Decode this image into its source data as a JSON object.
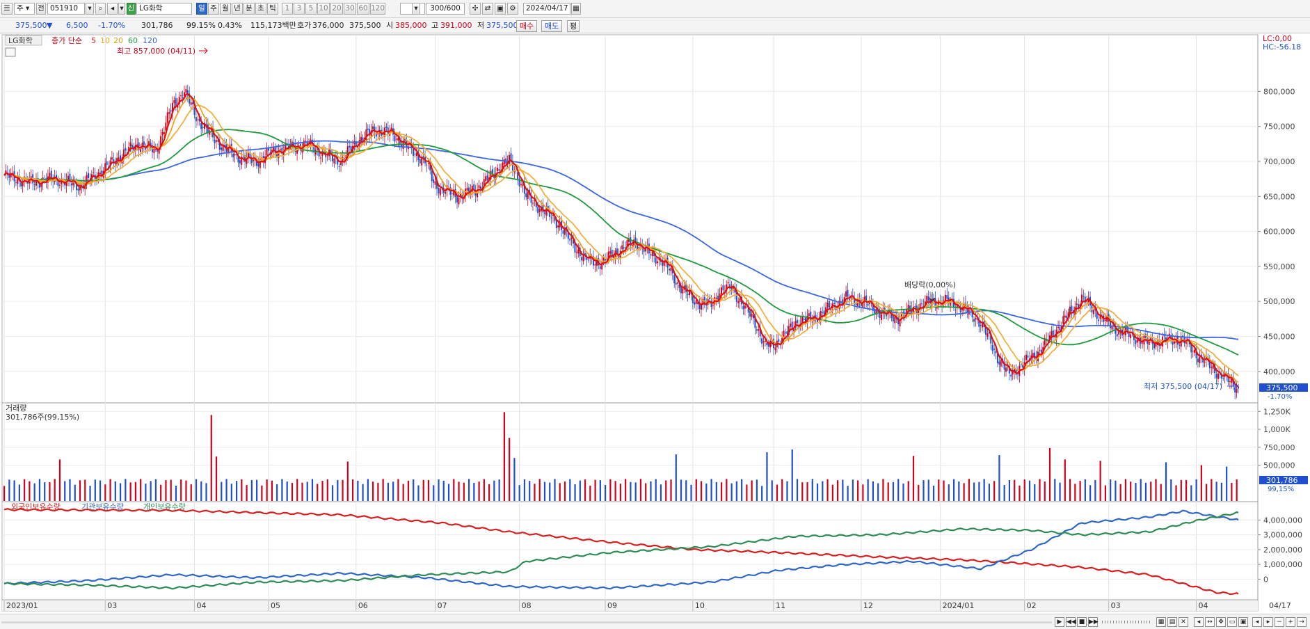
{
  "toolbar": {
    "market_label": "주",
    "code_prefix": "전",
    "stock_code": "051910",
    "stock_badge": "신",
    "stock_name": "LG화학",
    "periods": [
      "일",
      "주",
      "월",
      "년",
      "분",
      "초",
      "틱"
    ],
    "active_period": "일",
    "intervals": [
      "1",
      "3",
      "5",
      "10",
      "20",
      "30",
      "60",
      "120"
    ],
    "count": "300/600",
    "date": "2024/04/17"
  },
  "quote": {
    "price": "375,500",
    "direction": "▼",
    "change": "6,500",
    "change_pct": "-1.70%",
    "volume": "301,786",
    "volume_ratio": "99.15%",
    "turnover_pct": "0.43%",
    "trade_value": "115,173백만",
    "bid_label": "호가",
    "bid": "376,000",
    "ask": "375,500",
    "open_label": "시",
    "open": "385,000",
    "high_label": "고",
    "high": "391,000",
    "low_label": "저",
    "low": "375,500",
    "buy_label": "매수",
    "sell_label": "매도",
    "avg_label": "평"
  },
  "chart_data": [
    {
      "type": "candlestick",
      "title": "LG화학",
      "legend": {
        "ma_label": "종가 단순",
        "periods": [
          "5",
          "10",
          "20",
          "60",
          "120"
        ]
      },
      "colors": {
        "up": "#d0021b",
        "down": "#1f4fcf",
        "ma5": "#e01010",
        "ma10": "#f0a020",
        "ma20": "#f0b040",
        "ma60": "#1e9a3c",
        "ma120": "#3a66e0"
      },
      "y_ticks": [
        "800,000",
        "750,000",
        "700,000",
        "650,000",
        "600,000",
        "550,000",
        "500,000",
        "450,000",
        "400,000"
      ],
      "y_tick_values": [
        800000,
        750000,
        700000,
        650000,
        600000,
        550000,
        500000,
        450000,
        400000
      ],
      "y_range": [
        358000,
        870000
      ],
      "top_right_labels": [
        "LC:0,00",
        "HC:-56.18"
      ],
      "annotations": {
        "high": "최고 857,000 (04/11)",
        "low": "최저 375,500 (04/17)",
        "dividend": "배당락(0,00%)"
      },
      "last_price": "375,500",
      "last_change": "-1.70%",
      "close_path": [
        [
          0,
          680000
        ],
        [
          15,
          670000
        ],
        [
          30,
          675000
        ],
        [
          45,
          665000
        ],
        [
          60,
          690000
        ],
        [
          70,
          710000
        ],
        [
          80,
          725000
        ],
        [
          90,
          715000
        ],
        [
          100,
          780000
        ],
        [
          107,
          800000
        ],
        [
          115,
          760000
        ],
        [
          122,
          740000
        ],
        [
          130,
          720000
        ],
        [
          140,
          705000
        ],
        [
          150,
          700000
        ],
        [
          160,
          715000
        ],
        [
          170,
          720000
        ],
        [
          180,
          725000
        ],
        [
          190,
          710000
        ],
        [
          200,
          700000
        ],
        [
          210,
          730000
        ],
        [
          220,
          745000
        ],
        [
          230,
          740000
        ],
        [
          240,
          720000
        ],
        [
          250,
          700000
        ],
        [
          255,
          670000
        ],
        [
          260,
          660000
        ],
        [
          270,
          650000
        ],
        [
          280,
          660000
        ],
        [
          290,
          680000
        ],
        [
          295,
          695000
        ],
        [
          300,
          700000
        ],
        [
          305,
          680000
        ],
        [
          310,
          650000
        ],
        [
          320,
          630000
        ],
        [
          330,
          610000
        ],
        [
          335,
          590000
        ],
        [
          345,
          560000
        ],
        [
          355,
          555000
        ],
        [
          360,
          565000
        ],
        [
          370,
          580000
        ],
        [
          375,
          585000
        ],
        [
          385,
          565000
        ],
        [
          390,
          560000
        ],
        [
          395,
          545000
        ],
        [
          400,
          525000
        ],
        [
          410,
          500000
        ],
        [
          420,
          495000
        ],
        [
          425,
          515000
        ],
        [
          432,
          520000
        ],
        [
          440,
          490000
        ],
        [
          446,
          470000
        ],
        [
          452,
          435000
        ],
        [
          458,
          440000
        ],
        [
          465,
          455000
        ],
        [
          470,
          470000
        ],
        [
          480,
          475000
        ],
        [
          490,
          490000
        ],
        [
          500,
          505000
        ],
        [
          510,
          500000
        ],
        [
          520,
          485000
        ],
        [
          530,
          475000
        ],
        [
          540,
          490000
        ],
        [
          550,
          500000
        ],
        [
          560,
          500000
        ],
        [
          570,
          490000
        ],
        [
          580,
          470000
        ],
        [
          590,
          420000
        ],
        [
          597,
          395000
        ],
        [
          605,
          410000
        ],
        [
          615,
          430000
        ],
        [
          625,
          460000
        ],
        [
          635,
          490000
        ],
        [
          640,
          505000
        ],
        [
          650,
          480000
        ],
        [
          660,
          460000
        ],
        [
          670,
          450000
        ],
        [
          680,
          440000
        ],
        [
          690,
          445000
        ],
        [
          700,
          445000
        ],
        [
          710,
          420000
        ],
        [
          720,
          400000
        ],
        [
          728,
          385000
        ],
        [
          733,
          375500
        ]
      ]
    },
    {
      "type": "bar",
      "title": "거래량",
      "legend_value": "301,786주(99,15%)",
      "y_ticks": [
        "1,250K",
        "1,000K",
        "750,000",
        "500,000"
      ],
      "y_tick_values": [
        1250000,
        1000000,
        750000,
        500000
      ],
      "y_range": [
        0,
        1350000
      ],
      "last_volume": "301,786",
      "last_ratio": "99,15%",
      "typical_volume": 280000,
      "spikes": [
        {
          "day": 32,
          "value": 580000
        },
        {
          "day": 123,
          "value": 1200000
        },
        {
          "day": 125,
          "value": 620000
        },
        {
          "day": 204,
          "value": 550000
        },
        {
          "day": 297,
          "value": 1240000
        },
        {
          "day": 300,
          "value": 880000
        },
        {
          "day": 304,
          "value": 600000
        },
        {
          "day": 400,
          "value": 650000
        },
        {
          "day": 452,
          "value": 680000
        },
        {
          "day": 468,
          "value": 720000
        },
        {
          "day": 540,
          "value": 630000
        },
        {
          "day": 590,
          "value": 640000
        },
        {
          "day": 620,
          "value": 740000
        },
        {
          "day": 630,
          "value": 580000
        },
        {
          "day": 650,
          "value": 560000
        },
        {
          "day": 690,
          "value": 540000
        },
        {
          "day": 710,
          "value": 500000
        },
        {
          "day": 725,
          "value": 480000
        }
      ]
    },
    {
      "type": "line",
      "series": [
        {
          "name": "외국인보유수량",
          "color": "#d81e1e",
          "points": [
            [
              0,
              4700000
            ],
            [
              100,
              4650000
            ],
            [
              200,
              4350000
            ],
            [
              260,
              3800000
            ],
            [
              300,
              3200000
            ],
            [
              360,
              2500000
            ],
            [
              410,
              2000000
            ],
            [
              460,
              1800000
            ],
            [
              520,
              1500000
            ],
            [
              570,
              1300000
            ],
            [
              600,
              1100000
            ],
            [
              640,
              800000
            ],
            [
              680,
              300000
            ],
            [
              720,
              -900000
            ],
            [
              733,
              -1000000
            ]
          ]
        },
        {
          "name": "기관보유수량",
          "color": "#2f67c7",
          "points": [
            [
              0,
              -300000
            ],
            [
              50,
              -100000
            ],
            [
              100,
              300000
            ],
            [
              150,
              100000
            ],
            [
              200,
              400000
            ],
            [
              250,
              100000
            ],
            [
              300,
              -500000
            ],
            [
              360,
              -600000
            ],
            [
              420,
              -200000
            ],
            [
              460,
              600000
            ],
            [
              500,
              1000000
            ],
            [
              540,
              1200000
            ],
            [
              580,
              700000
            ],
            [
              610,
              2000000
            ],
            [
              640,
              3800000
            ],
            [
              680,
              4200000
            ],
            [
              700,
              4600000
            ],
            [
              733,
              4000000
            ]
          ]
        },
        {
          "name": "개인보유수량",
          "color": "#2e8b57",
          "points": [
            [
              0,
              -300000
            ],
            [
              50,
              -400000
            ],
            [
              100,
              -600000
            ],
            [
              150,
              -200000
            ],
            [
              200,
              -100000
            ],
            [
              250,
              300000
            ],
            [
              300,
              500000
            ],
            [
              310,
              1200000
            ],
            [
              360,
              1800000
            ],
            [
              420,
              2200000
            ],
            [
              470,
              2900000
            ],
            [
              520,
              3000000
            ],
            [
              570,
              3400000
            ],
            [
              610,
              3300000
            ],
            [
              640,
              3000000
            ],
            [
              680,
              3200000
            ],
            [
              710,
              4000000
            ],
            [
              733,
              4500000
            ]
          ]
        }
      ],
      "y_ticks": [
        "4,000,000",
        "3,000,000",
        "2,000,000",
        "1,000,000",
        "0"
      ],
      "y_tick_values": [
        4000000,
        3000000,
        2000000,
        1000000,
        0
      ],
      "y_range": [
        -1300000,
        5100000
      ]
    }
  ],
  "x_axis": {
    "months": [
      "2023/01",
      "03",
      "04",
      "05",
      "06",
      "07",
      "08",
      "09",
      "10",
      "11",
      "12",
      "2024/01",
      "02",
      "03",
      "04"
    ],
    "month_days": [
      0,
      60,
      113,
      157,
      209,
      256,
      306,
      357,
      409,
      457,
      509,
      556,
      606,
      656,
      708
    ],
    "last_date": "04/17",
    "total_days": 733
  }
}
